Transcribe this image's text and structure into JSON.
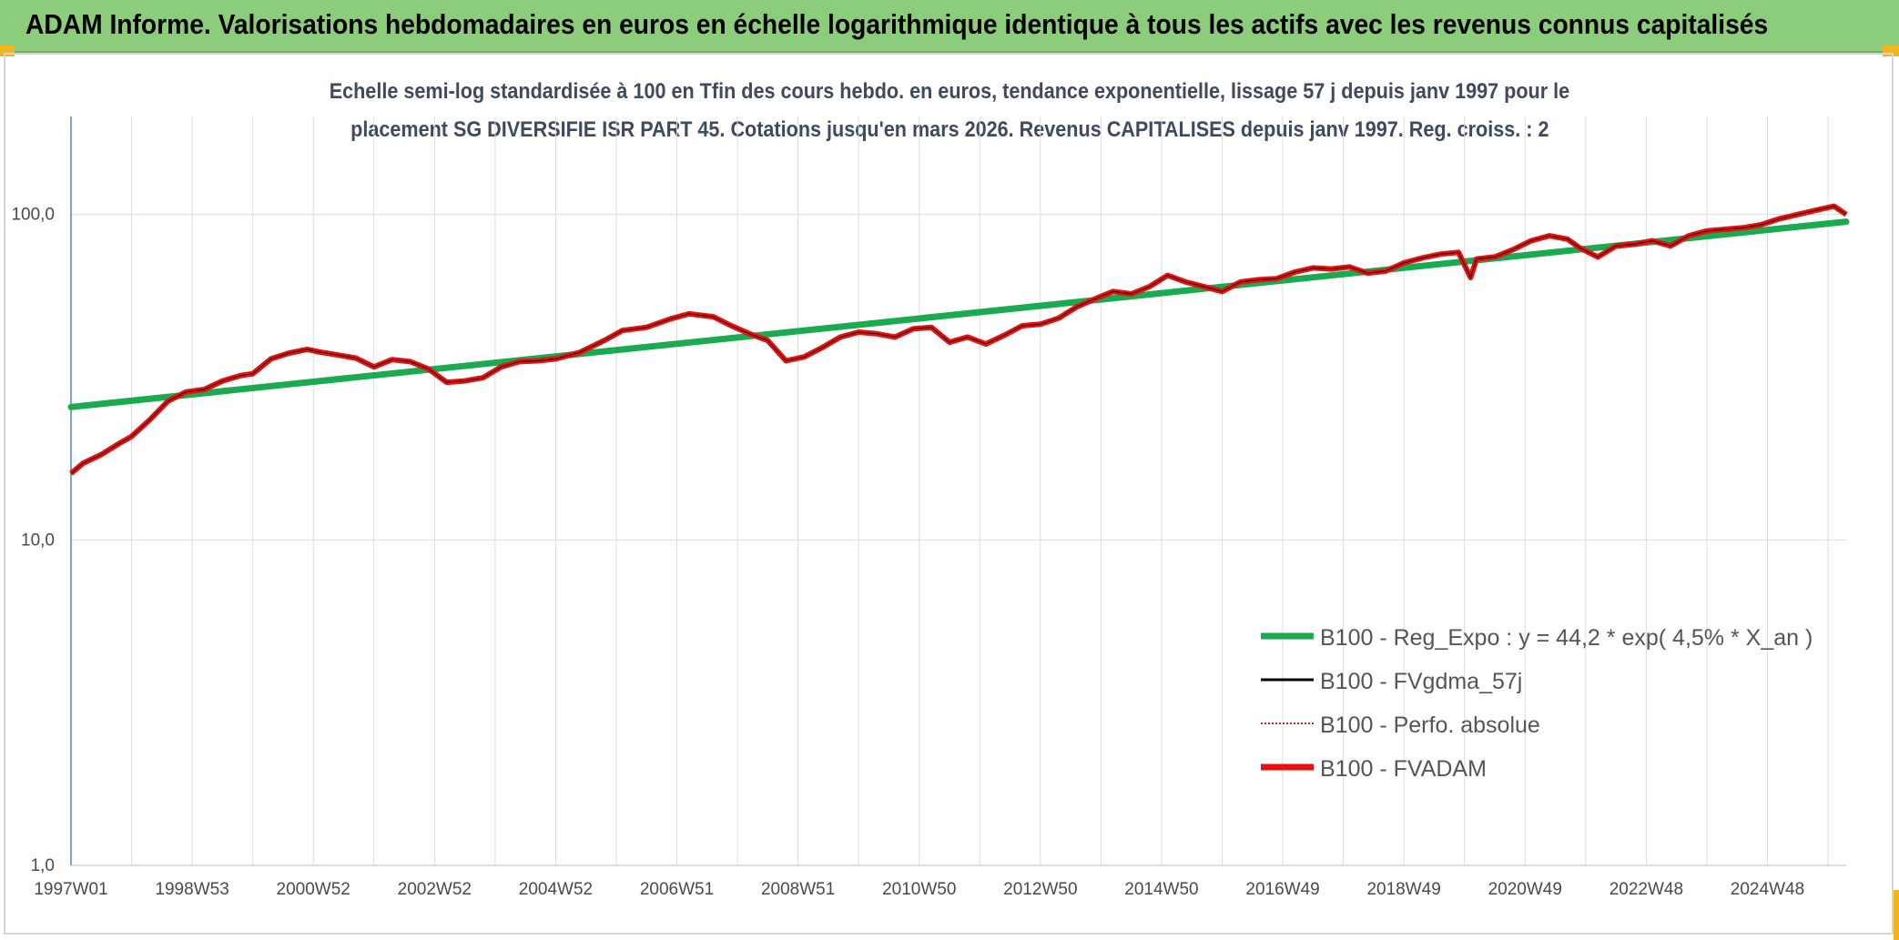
{
  "header": {
    "title": "ADAM Informe. Valorisations hebdomadaires en euros en échelle logarithmique identique à tous les actifs avec les revenus connus capitalisés"
  },
  "chart_data": {
    "type": "line",
    "title_line1": "Echelle semi-log standardisée à 100 en Tfin des cours hebdo. en euros, tendance exponentielle, lissage 57 j depuis janv 1997 pour le",
    "title_line2": "placement SG DIVERSIFIE ISR PART 45. Cotations jusqu'en mars 2026. Revenus CAPITALISES depuis janv 1997. Reg. croiss. : 2",
    "y_scale": "log",
    "ylim": [
      1,
      200
    ],
    "xlim": [
      1997.0,
      2026.3
    ],
    "grid": true,
    "y_ticks": [
      {
        "value": 1,
        "label": "1,0"
      },
      {
        "value": 10,
        "label": "10,0"
      },
      {
        "value": 100,
        "label": "100,0"
      }
    ],
    "x_ticks": [
      {
        "value": 1997.0,
        "label": "1997W01"
      },
      {
        "value": 1999.0,
        "label": "1998W53"
      },
      {
        "value": 2001.0,
        "label": "2000W52"
      },
      {
        "value": 2003.0,
        "label": "2002W52"
      },
      {
        "value": 2005.0,
        "label": "2004W52"
      },
      {
        "value": 2007.0,
        "label": "2006W51"
      },
      {
        "value": 2009.0,
        "label": "2008W51"
      },
      {
        "value": 2011.0,
        "label": "2010W50"
      },
      {
        "value": 2013.0,
        "label": "2012W50"
      },
      {
        "value": 2015.0,
        "label": "2014W50"
      },
      {
        "value": 2017.0,
        "label": "2016W49"
      },
      {
        "value": 2019.0,
        "label": "2018W49"
      },
      {
        "value": 2021.0,
        "label": "2020W49"
      },
      {
        "value": 2023.0,
        "label": "2022W48"
      },
      {
        "value": 2025.0,
        "label": "2024W48"
      }
    ],
    "x_minor_ticks": [
      1998,
      2000,
      2002,
      2004,
      2006,
      2008,
      2010,
      2012,
      2014,
      2016,
      2018,
      2020,
      2022,
      2024,
      2026
    ],
    "legend_position": "center-right",
    "series": [
      {
        "name": "B100 - Reg_Expo : y = 44,2 * exp( 4,5% *  X_an )",
        "color": "#1aaa50",
        "style": "thick",
        "x": [
          1997.0,
          2026.3
        ],
        "y": [
          25.6,
          95.0
        ]
      },
      {
        "name": "B100 - FVgdma_57j",
        "color": "#000000",
        "style": "thin"
      },
      {
        "name": "B100 - Perfo. absolue",
        "color": "#e21b1b",
        "style": "dotted"
      },
      {
        "name": "B100 - FVADAM",
        "color": "#e81010",
        "style": "thick",
        "x": [
          1997.0,
          1997.2,
          1997.5,
          1997.8,
          1998.0,
          1998.3,
          1998.6,
          1998.9,
          1999.2,
          1999.5,
          1999.8,
          2000.0,
          2000.3,
          2000.6,
          2000.9,
          2001.1,
          2001.4,
          2001.7,
          2002.0,
          2002.3,
          2002.6,
          2002.9,
          2003.2,
          2003.5,
          2003.8,
          2004.1,
          2004.4,
          2004.7,
          2005.0,
          2005.4,
          2005.8,
          2006.1,
          2006.5,
          2006.9,
          2007.2,
          2007.6,
          2007.9,
          2008.2,
          2008.5,
          2008.8,
          2009.1,
          2009.4,
          2009.7,
          2010.0,
          2010.3,
          2010.6,
          2010.9,
          2011.2,
          2011.5,
          2011.8,
          2012.1,
          2012.4,
          2012.7,
          2013.0,
          2013.3,
          2013.6,
          2013.9,
          2014.2,
          2014.5,
          2014.8,
          2015.1,
          2015.4,
          2015.7,
          2016.0,
          2016.3,
          2016.6,
          2016.9,
          2017.2,
          2017.5,
          2017.8,
          2018.1,
          2018.4,
          2018.7,
          2019.0,
          2019.3,
          2019.6,
          2019.9,
          2020.1,
          2020.2,
          2020.5,
          2020.8,
          2021.1,
          2021.4,
          2021.7,
          2021.9,
          2022.2,
          2022.5,
          2022.8,
          2023.1,
          2023.4,
          2023.7,
          2024.0,
          2024.3,
          2024.6,
          2024.9,
          2025.2,
          2025.5,
          2025.8,
          2026.1,
          2026.3
        ],
        "y": [
          16.0,
          17.2,
          18.3,
          19.8,
          20.8,
          23.4,
          26.7,
          28.5,
          29.0,
          30.8,
          32.0,
          32.4,
          36.0,
          37.5,
          38.5,
          37.8,
          37.0,
          36.2,
          34.0,
          35.8,
          35.3,
          33.5,
          30.5,
          30.8,
          31.5,
          34.0,
          35.3,
          35.5,
          36.0,
          37.7,
          41.0,
          44.0,
          45.0,
          47.8,
          49.5,
          48.5,
          45.5,
          43.0,
          41.0,
          35.5,
          36.5,
          39.0,
          42.0,
          43.5,
          43.0,
          42.0,
          44.5,
          45.0,
          40.5,
          42.0,
          40.0,
          42.5,
          45.5,
          46.0,
          48.0,
          52.0,
          55.0,
          58.0,
          57.0,
          60.0,
          65.0,
          62.0,
          60.0,
          58.0,
          62.0,
          63.0,
          63.5,
          66.5,
          68.5,
          68.0,
          69.0,
          66.0,
          67.0,
          71.0,
          73.5,
          75.5,
          76.5,
          64.0,
          73.0,
          74.0,
          78.0,
          83.0,
          86.0,
          84.0,
          79.0,
          74.0,
          80.0,
          81.0,
          83.0,
          80.0,
          86.0,
          89.0,
          90.0,
          91.0,
          93.0,
          97.0,
          100.0,
          103.0,
          106.0,
          100.0
        ]
      }
    ]
  }
}
